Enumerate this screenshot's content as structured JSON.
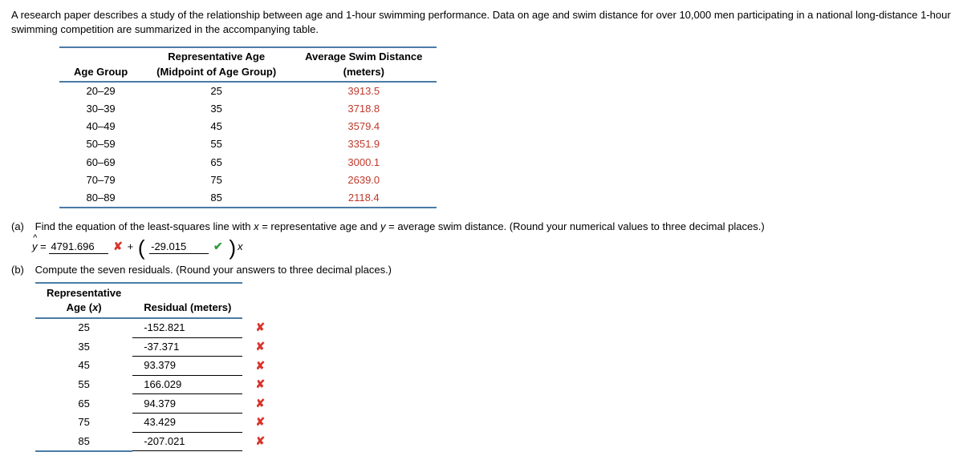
{
  "intro": "A research paper describes a study of the relationship between age and 1-hour swimming performance. Data on age and swim distance for over 10,000 men participating in a national long-distance 1-hour swimming competition are summarized in the accompanying table.",
  "table1": {
    "headers": {
      "c1": "Age Group",
      "c2a": "Representative Age",
      "c2b": "(Midpoint of Age Group)",
      "c3a": "Average Swim Distance",
      "c3b": "(meters)"
    },
    "rows": [
      {
        "g": "20–29",
        "a": "25",
        "d": "3913.5"
      },
      {
        "g": "30–39",
        "a": "35",
        "d": "3718.8"
      },
      {
        "g": "40–49",
        "a": "45",
        "d": "3579.4"
      },
      {
        "g": "50–59",
        "a": "55",
        "d": "3351.9"
      },
      {
        "g": "60–69",
        "a": "65",
        "d": "3000.1"
      },
      {
        "g": "70–79",
        "a": "75",
        "d": "2639.0"
      },
      {
        "g": "80–89",
        "a": "85",
        "d": "2118.4"
      }
    ],
    "value_color": "#c0392b"
  },
  "partA": {
    "label": "(a)",
    "prompt": "Find the equation of the least-squares line with x = representative age and y = average swim distance. (Round your numerical values to three decimal places.)",
    "yhat": "ŷ",
    "eq_prefix": " = ",
    "intercept": "4791.696",
    "intercept_mark": "wrong",
    "plus": " + ",
    "slope": "-29.015",
    "slope_mark": "correct",
    "trail": "x"
  },
  "partB": {
    "label": "(b)",
    "prompt": "Compute the seven residuals. (Round your answers to three decimal places.)",
    "headers": {
      "c1a": "Representative",
      "c1b": "Age (x)",
      "c2": "Residual (meters)"
    },
    "rows": [
      {
        "x": "25",
        "r": "-152.821",
        "m": "wrong"
      },
      {
        "x": "35",
        "r": "-37.371",
        "m": "wrong"
      },
      {
        "x": "45",
        "r": "93.379",
        "m": "wrong"
      },
      {
        "x": "55",
        "r": "166.029",
        "m": "wrong"
      },
      {
        "x": "65",
        "r": "94.379",
        "m": "wrong"
      },
      {
        "x": "75",
        "r": "43.429",
        "m": "wrong"
      },
      {
        "x": "85",
        "r": "-207.021",
        "m": "wrong"
      }
    ]
  },
  "marks": {
    "wrong": "✘",
    "correct": "✔"
  }
}
